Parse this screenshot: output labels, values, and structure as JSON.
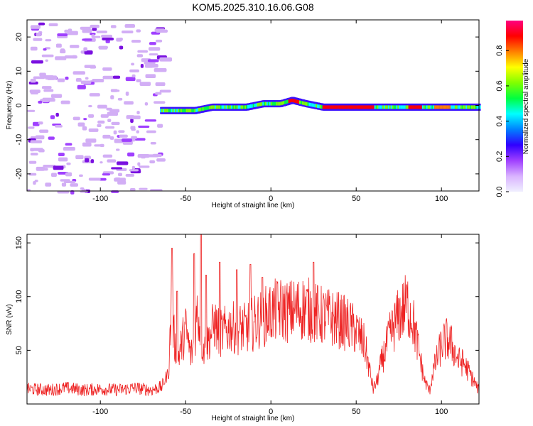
{
  "title": "KOM5.2025.310.16.06.G08",
  "chart_data": [
    {
      "type": "heatmap",
      "name": "spectrogram",
      "xlabel": "Height of straight line (km)",
      "ylabel": "Frequency (Hz)",
      "xlim": [
        -143,
        122
      ],
      "ylim": [
        -25,
        25
      ],
      "xticks": [
        -100,
        -50,
        0,
        50,
        100
      ],
      "yticks": [
        -20,
        -10,
        0,
        10,
        20
      ],
      "colorbar": {
        "label": "Normalized spectral amplitude",
        "range": [
          0,
          0.97
        ],
        "ticks": [
          0.0,
          0.2,
          0.4,
          0.6,
          0.8
        ],
        "colors": [
          "#f0f0ff",
          "#d9b3ff",
          "#a040ff",
          "#3000ff",
          "#0080ff",
          "#00ffff",
          "#00ff40",
          "#80ff00",
          "#ffff00",
          "#ff8000",
          "#ff0000",
          "#ff0080"
        ]
      },
      "signal_track": {
        "description_free": true,
        "onset_km": -65,
        "points": [
          [
            -65,
            -1.5
          ],
          [
            -55,
            -1.5
          ],
          [
            -45,
            -1.5
          ],
          [
            -35,
            -0.5
          ],
          [
            -25,
            -0.5
          ],
          [
            -15,
            -0.5
          ],
          [
            -5,
            0.5
          ],
          [
            5,
            0.5
          ],
          [
            12,
            1.5
          ],
          [
            20,
            0.5
          ],
          [
            30,
            -0.5
          ],
          [
            40,
            -0.5
          ],
          [
            50,
            -0.5
          ],
          [
            60,
            -0.5
          ],
          [
            70,
            -0.5
          ],
          [
            80,
            -0.5
          ],
          [
            90,
            -0.5
          ],
          [
            100,
            -0.5
          ],
          [
            110,
            -0.5
          ],
          [
            122,
            -0.5
          ]
        ]
      }
    },
    {
      "type": "line",
      "name": "snr",
      "xlabel": "Height of straight line (km)",
      "ylabel": "SNR (v/v)",
      "xlim": [
        -143,
        122
      ],
      "ylim": [
        0,
        158
      ],
      "xticks": [
        -100,
        -50,
        0,
        50,
        100
      ],
      "yticks": [
        50,
        100,
        150
      ],
      "color": "#ee2222",
      "series": [
        {
          "name": "SNR",
          "x": [
            -143,
            -130,
            -120,
            -110,
            -100,
            -90,
            -80,
            -70,
            -64,
            -60,
            -58,
            -57,
            -55,
            -52,
            -50,
            -47,
            -45,
            -43,
            -41,
            -39,
            -36,
            -33,
            -30,
            -27,
            -24,
            -20,
            -15,
            -10,
            -5,
            0,
            5,
            10,
            15,
            20,
            25,
            30,
            35,
            40,
            45,
            50,
            55,
            58,
            60,
            62,
            65,
            70,
            75,
            80,
            83,
            86,
            90,
            93,
            95,
            100,
            103,
            106,
            110,
            113,
            116,
            120,
            122
          ],
          "y": [
            14,
            13,
            15,
            13,
            14,
            13,
            15,
            13,
            16,
            30,
            100,
            65,
            40,
            58,
            70,
            45,
            55,
            90,
            60,
            50,
            62,
            75,
            65,
            68,
            72,
            70,
            70,
            75,
            80,
            85,
            88,
            86,
            88,
            90,
            85,
            82,
            80,
            78,
            74,
            68,
            55,
            30,
            14,
            20,
            40,
            65,
            82,
            93,
            80,
            55,
            22,
            12,
            30,
            55,
            60,
            55,
            40,
            38,
            30,
            18,
            12
          ]
        }
      ],
      "spikes": [
        [
          -58,
          145
        ],
        [
          -55,
          105
        ],
        [
          -45,
          140
        ],
        [
          -41,
          158
        ],
        [
          -38,
          120
        ],
        [
          -30,
          132
        ],
        [
          -20,
          125
        ],
        [
          -12,
          130
        ],
        [
          -5,
          118
        ],
        [
          25,
          132
        ]
      ]
    }
  ]
}
